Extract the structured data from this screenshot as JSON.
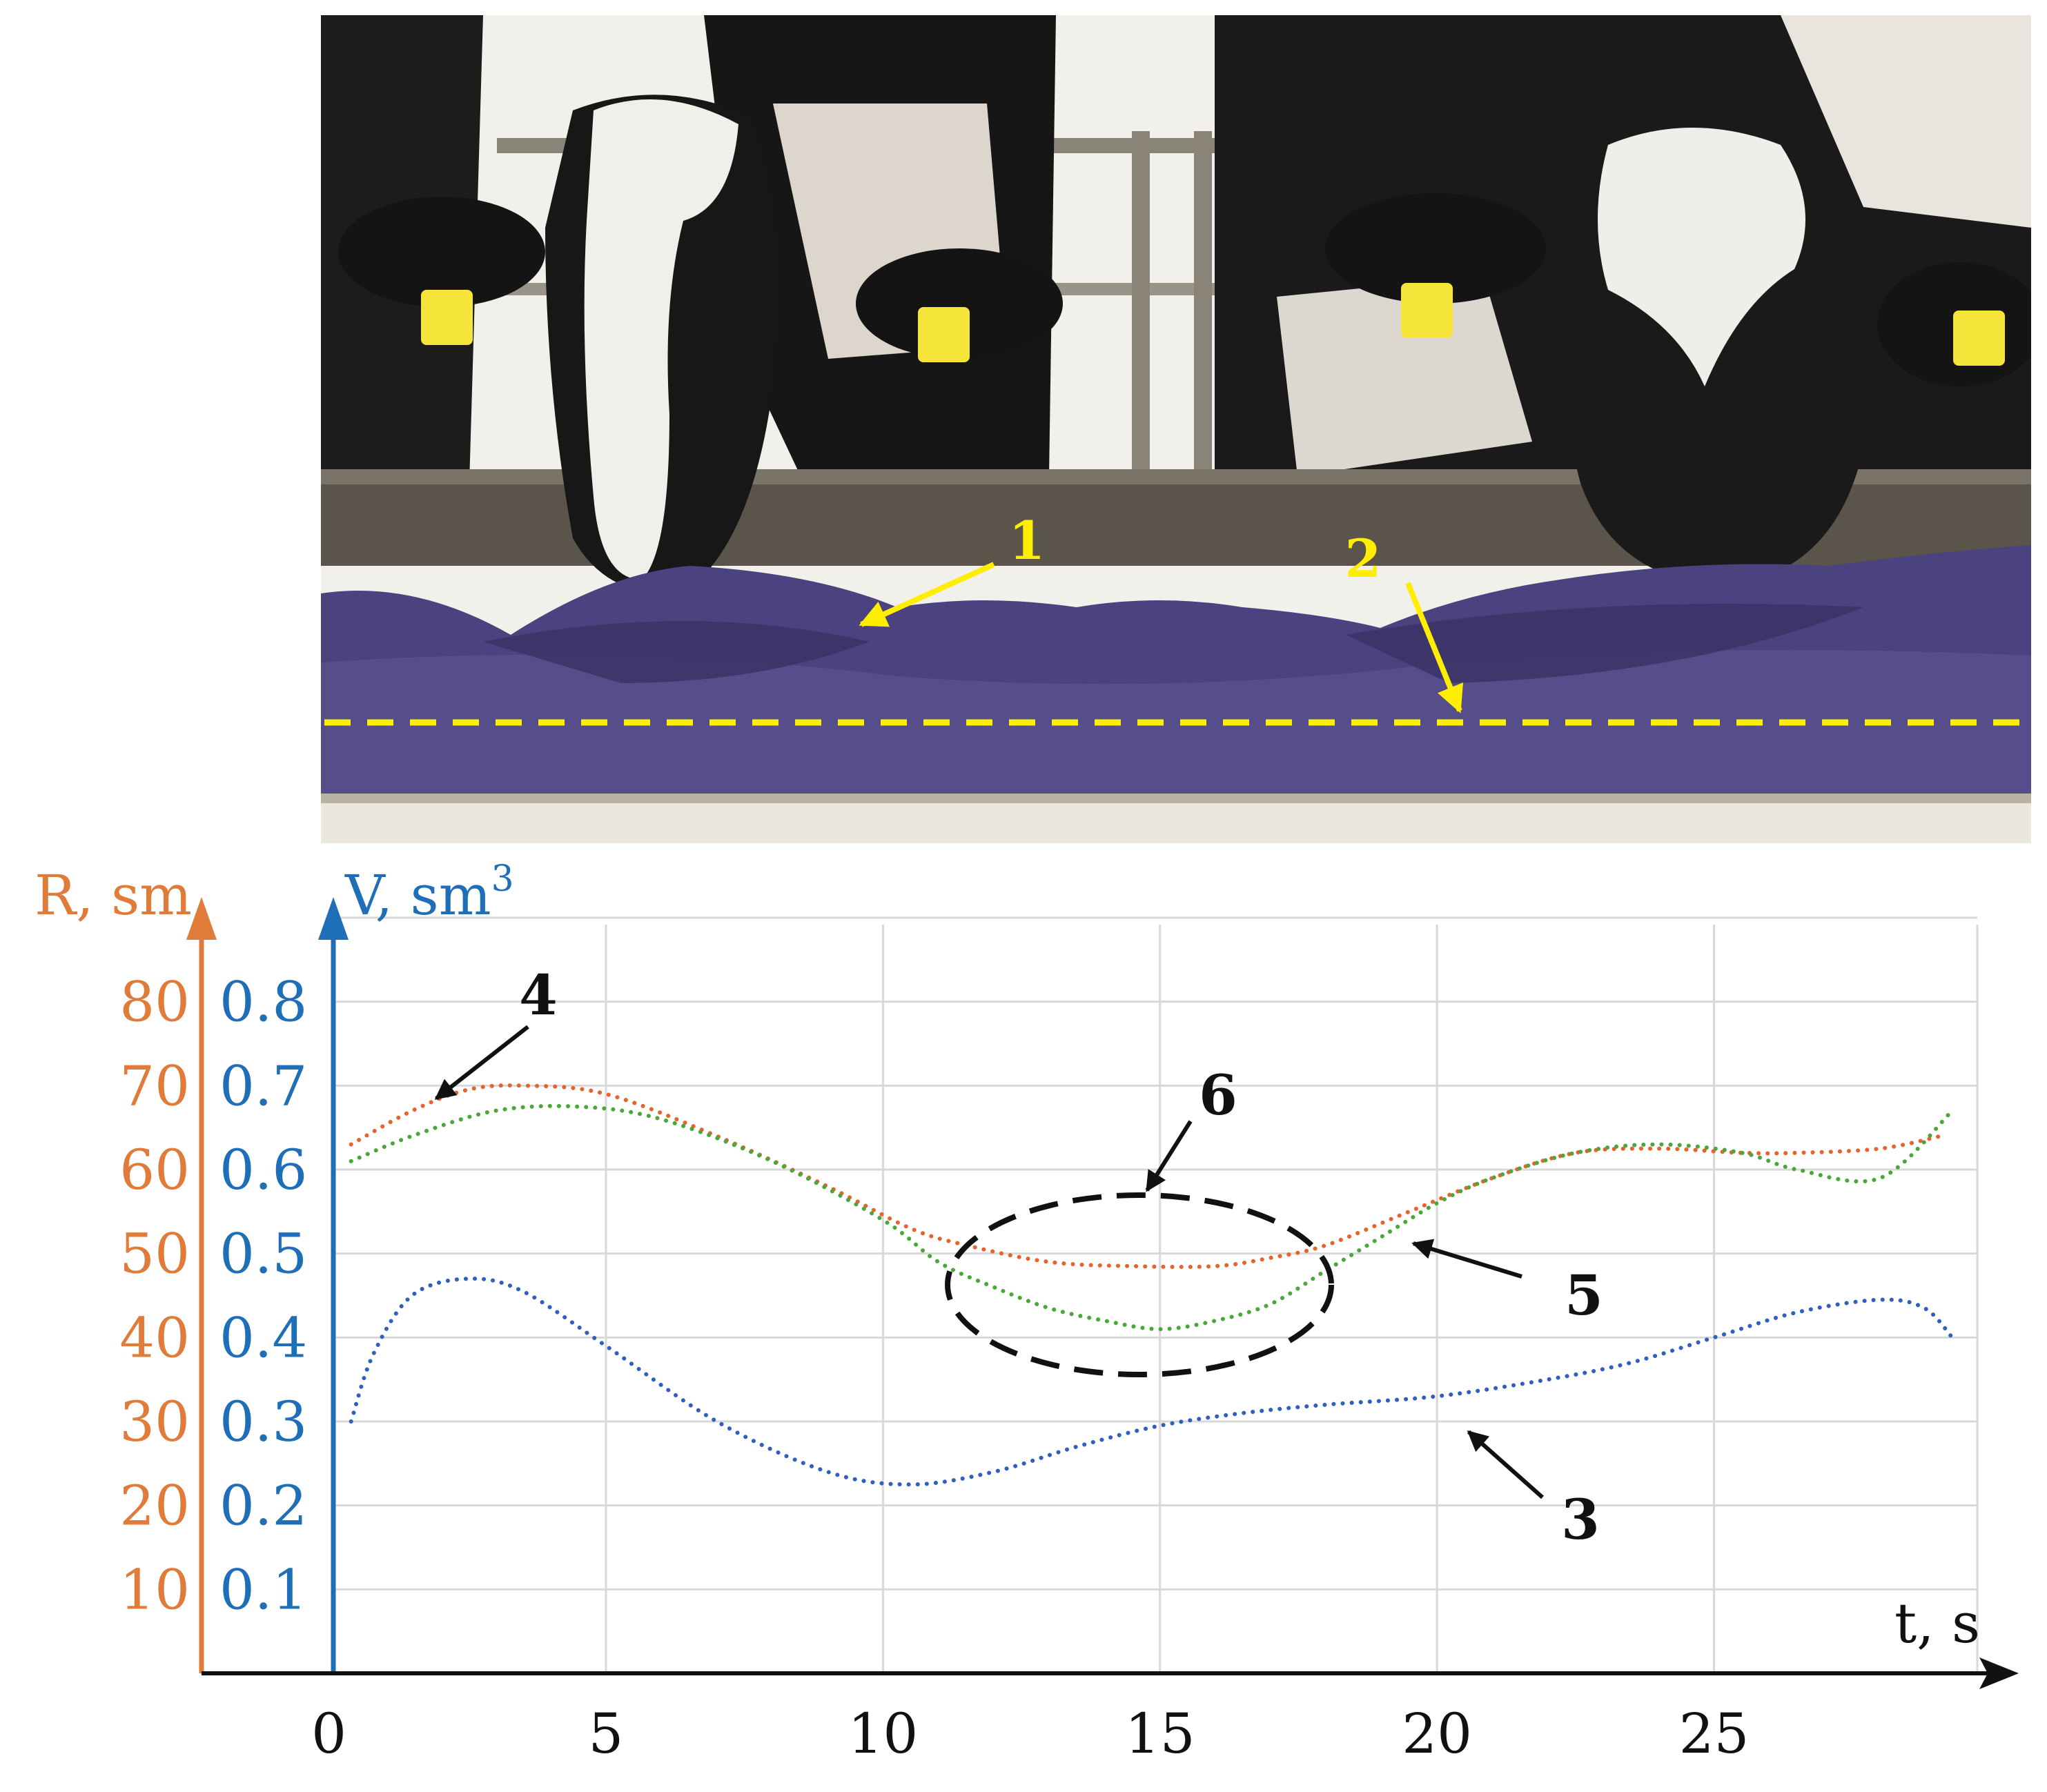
{
  "photo": {
    "callouts": [
      "1",
      "2"
    ],
    "colors": {
      "feed": "#4b4380",
      "callout": "#ffee00",
      "barn_bg": "#f2f0ea",
      "cow_black": "#141414"
    }
  },
  "chart_data": {
    "type": "line",
    "xlabel": "t, s",
    "ylabel_left": {
      "prefix": "R, ",
      "unit": "sm"
    },
    "ylabel_right": {
      "prefix": "V, ",
      "unit": "sm",
      "unit_sup": "3"
    },
    "x_ticks": [
      "0",
      "5",
      "10",
      "15",
      "20",
      "25"
    ],
    "x_tick_values": [
      0,
      5,
      10,
      15,
      20,
      25
    ],
    "xlim": [
      -2.3,
      30.5
    ],
    "grid": true,
    "y_ticks_R": [
      "10",
      "20",
      "30",
      "40",
      "50",
      "60",
      "70",
      "80"
    ],
    "y_ticks_V": [
      "0.1",
      "0.2",
      "0.3",
      "0.4",
      "0.5",
      "0.6",
      "0.7",
      "0.8"
    ],
    "y_tick_values": [
      10,
      20,
      30,
      40,
      50,
      60,
      70,
      80
    ],
    "ylim": [
      0,
      90
    ],
    "axis_colors": {
      "R": "#e07b39",
      "V": "#1f6fb8"
    },
    "series": [
      {
        "color": "#e8622b",
        "style": "dotted",
        "x": [
          0.4,
          1.5,
          2.5,
          3.5,
          5,
          7,
          9,
          10.5,
          11.5,
          13,
          14.5,
          16,
          17,
          18,
          19.5,
          21,
          22.5,
          24,
          25.5,
          26.5,
          28,
          29.1
        ],
        "y": [
          63,
          67,
          69.5,
          70,
          69,
          64,
          58,
          53,
          51,
          49,
          48.5,
          48.5,
          49.5,
          51,
          55,
          59,
          62,
          62.5,
          62,
          62,
          62.5,
          64
        ]
      },
      {
        "color": "#4aa83a",
        "style": "dotted",
        "x": [
          0.4,
          1.5,
          3,
          4.5,
          6,
          8,
          10,
          11,
          12,
          13,
          14,
          15,
          16,
          17,
          18,
          19,
          20,
          21,
          22.5,
          24,
          25.5,
          26.5,
          28,
          29.3
        ],
        "y": [
          61,
          64,
          67,
          67.5,
          66,
          61,
          54,
          49,
          46,
          43.5,
          42,
          41,
          42,
          44,
          48,
          52,
          56,
          59,
          62,
          63,
          62,
          60,
          59,
          67
        ]
      },
      {
        "color": "#2f5fbf",
        "style": "dotted",
        "x": [
          0.4,
          0.8,
          1.5,
          2.5,
          3.5,
          5,
          7,
          9,
          10.5,
          12,
          13.5,
          15,
          16.5,
          18,
          20,
          22,
          23.5,
          25,
          26.5,
          28,
          28.8,
          29.3
        ],
        "y": [
          30,
          38,
          45,
          47,
          45.5,
          39,
          30,
          24,
          22.5,
          24,
          27,
          29.5,
          31,
          32,
          33,
          35,
          37,
          40,
          43,
          44.5,
          43.5,
          40
        ]
      }
    ],
    "callouts": [
      "3",
      "4",
      "5",
      "6"
    ]
  }
}
